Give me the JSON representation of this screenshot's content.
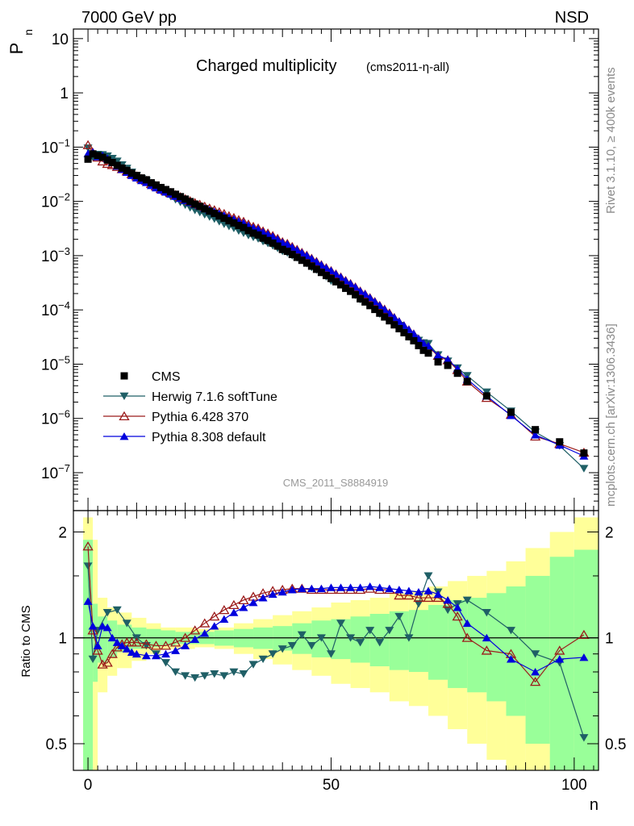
{
  "header": {
    "energy_label": "7000 GeV pp",
    "process_label": "NSD"
  },
  "title": {
    "main": "Charged multiplicity",
    "analysis_tag": "(cms2011-η-all)"
  },
  "side_labels": {
    "top": "Rivet 3.1.10, ≥ 400k events",
    "bottom": "mcplots.cern.ch [arXiv:1306.3436]"
  },
  "watermark": "CMS_2011_S8884919",
  "chart_data": [
    {
      "type": "scatter",
      "panel": "main",
      "ylabel": "Pn",
      "ylabel_main": "P",
      "ylabel_sub": "n",
      "yscale": "log",
      "ylim": [
        2e-08,
        15
      ],
      "xlim": [
        -3,
        105
      ],
      "ytick_labels": [
        {
          "base": "10",
          "exp": ""
        },
        {
          "base": "1",
          "exp": ""
        },
        {
          "base": "10",
          "exp": "−1"
        },
        {
          "base": "10",
          "exp": "−2"
        },
        {
          "base": "10",
          "exp": "−3"
        },
        {
          "base": "10",
          "exp": "−4"
        },
        {
          "base": "10",
          "exp": "−5"
        },
        {
          "base": "10",
          "exp": "−6"
        },
        {
          "base": "10",
          "exp": "−7"
        }
      ],
      "legend": [
        {
          "name": "CMS",
          "color": "#000000",
          "marker": "square"
        },
        {
          "name": "Herwig 7.1.6 softTune",
          "color": "#1f5f66",
          "marker": "triangle-down"
        },
        {
          "name": "Pythia 6.428 370",
          "color": "#9b1b1b",
          "marker": "triangle-up-open"
        },
        {
          "name": "Pythia 8.308 default",
          "color": "#0000dd",
          "marker": "triangle-up"
        }
      ],
      "cms": {
        "x": [
          0,
          1,
          2,
          3,
          4,
          5,
          6,
          7,
          8,
          9,
          10,
          11,
          12,
          13,
          14,
          15,
          16,
          17,
          18,
          19,
          20,
          21,
          22,
          23,
          24,
          25,
          26,
          27,
          28,
          29,
          30,
          31,
          32,
          33,
          34,
          35,
          36,
          37,
          38,
          39,
          40,
          41,
          42,
          43,
          44,
          45,
          46,
          47,
          48,
          49,
          50,
          51,
          52,
          53,
          54,
          55,
          56,
          57,
          58,
          59,
          60,
          61,
          62,
          63,
          64,
          65,
          66,
          67,
          68,
          69,
          70,
          72,
          74,
          76,
          78,
          82,
          87,
          92,
          97,
          102
        ],
        "y": [
          0.06,
          0.075,
          0.07,
          0.065,
          0.058,
          0.052,
          0.046,
          0.041,
          0.037,
          0.033,
          0.03,
          0.027,
          0.025,
          0.022,
          0.02,
          0.018,
          0.0165,
          0.015,
          0.0135,
          0.0122,
          0.011,
          0.0099,
          0.0089,
          0.0081,
          0.0073,
          0.0066,
          0.006,
          0.0054,
          0.0049,
          0.0044,
          0.004,
          0.0036,
          0.0033,
          0.0029,
          0.0026,
          0.0024,
          0.0021,
          0.0019,
          0.0017,
          0.0015,
          0.0013,
          0.0012,
          0.00105,
          0.00093,
          0.00082,
          0.00073,
          0.00064,
          0.00056,
          0.00049,
          0.00043,
          0.00038,
          0.00033,
          0.00029,
          0.00025,
          0.00022,
          0.00019,
          0.00016,
          0.00014,
          0.00012,
          0.000102,
          8.7e-05,
          7.4e-05,
          6.3e-05,
          5.3e-05,
          4.5e-05,
          3.8e-05,
          3.2e-05,
          2.7e-05,
          2.2e-05,
          1.8e-05,
          1.6e-05,
          1.1e-05,
          9.5e-06,
          6.8e-06,
          4.8e-06,
          2.6e-06,
          1.3e-06,
          6.2e-07,
          3.7e-07,
          2.3e-07
        ]
      }
    },
    {
      "type": "line",
      "panel": "ratio",
      "ylabel": "Ratio to CMS",
      "ylim": [
        0.42,
        2.3
      ],
      "xlim": [
        -3,
        105
      ],
      "yticks": [
        0.5,
        1,
        2
      ],
      "ytick_labels": [
        "0.5",
        "1",
        "2"
      ],
      "xticks": [
        0,
        50,
        100
      ],
      "xtick_labels": [
        "0",
        "50",
        "100"
      ],
      "xlabel": "n",
      "bands": {
        "edges": [
          -1,
          1,
          2,
          4,
          6,
          9,
          12,
          15,
          18,
          22,
          26,
          30,
          34,
          38,
          42,
          46,
          50,
          54,
          58,
          62,
          66,
          70,
          74,
          78,
          82,
          86,
          90,
          95,
          100,
          105
        ],
        "stat_err": [
          0.9,
          0.25,
          0.15,
          0.12,
          0.09,
          0.07,
          0.06,
          0.05,
          0.04,
          0.04,
          0.05,
          0.06,
          0.07,
          0.08,
          0.1,
          0.12,
          0.13,
          0.15,
          0.17,
          0.19,
          0.2,
          0.24,
          0.28,
          0.3,
          0.34,
          0.4,
          0.5,
          0.7,
          0.78
        ],
        "total_err": [
          1.2,
          0.9,
          0.3,
          0.22,
          0.18,
          0.14,
          0.1,
          0.07,
          0.07,
          0.06,
          0.07,
          0.1,
          0.13,
          0.16,
          0.19,
          0.22,
          0.26,
          0.28,
          0.3,
          0.34,
          0.36,
          0.4,
          0.45,
          0.5,
          0.55,
          0.65,
          0.8,
          1.0,
          1.2
        ]
      },
      "series": [
        {
          "name": "Herwig 7.1.6 softTune",
          "x": [
            0,
            1,
            2,
            4,
            6,
            8,
            10,
            12,
            14,
            16,
            18,
            20,
            22,
            24,
            26,
            28,
            30,
            32,
            34,
            36,
            38,
            40,
            42,
            44,
            46,
            48,
            50,
            52,
            54,
            56,
            58,
            60,
            62,
            64,
            66,
            68,
            70,
            72,
            74,
            76,
            78,
            82,
            87,
            92,
            97,
            102
          ],
          "y": [
            1.6,
            0.87,
            1.05,
            1.18,
            1.2,
            1.1,
            1.0,
            0.95,
            0.9,
            0.85,
            0.8,
            0.78,
            0.77,
            0.78,
            0.79,
            0.78,
            0.8,
            0.79,
            0.84,
            0.87,
            0.9,
            0.93,
            0.95,
            1.02,
            0.95,
            1.0,
            0.9,
            1.1,
            1.0,
            0.97,
            1.05,
            0.97,
            1.05,
            1.15,
            1.0,
            1.25,
            1.5,
            1.35,
            1.2,
            1.25,
            1.28,
            1.18,
            1.05,
            0.9,
            0.85,
            0.52
          ]
        },
        {
          "name": "Pythia 6.428 370",
          "x": [
            0,
            1,
            2,
            3,
            4,
            5,
            6,
            7,
            8,
            9,
            10,
            12,
            14,
            16,
            18,
            20,
            22,
            24,
            26,
            28,
            30,
            32,
            34,
            36,
            38,
            40,
            42,
            44,
            46,
            48,
            50,
            52,
            54,
            56,
            58,
            60,
            62,
            64,
            66,
            68,
            70,
            72,
            74,
            76,
            78,
            82,
            87,
            92,
            97,
            102
          ],
          "y": [
            1.82,
            1.05,
            0.92,
            0.84,
            0.85,
            0.9,
            0.94,
            0.96,
            0.97,
            0.97,
            0.97,
            0.96,
            0.95,
            0.95,
            0.97,
            1.0,
            1.05,
            1.1,
            1.15,
            1.2,
            1.24,
            1.28,
            1.31,
            1.34,
            1.36,
            1.37,
            1.38,
            1.38,
            1.37,
            1.37,
            1.37,
            1.37,
            1.37,
            1.37,
            1.38,
            1.37,
            1.37,
            1.32,
            1.32,
            1.3,
            1.3,
            1.3,
            1.25,
            1.15,
            1.0,
            0.92,
            0.9,
            0.75,
            0.92,
            1.02
          ]
        },
        {
          "name": "Pythia 8.308 default",
          "x": [
            0,
            1,
            2,
            3,
            4,
            5,
            6,
            7,
            8,
            9,
            10,
            12,
            14,
            16,
            18,
            20,
            22,
            24,
            26,
            28,
            30,
            32,
            34,
            36,
            38,
            40,
            42,
            44,
            46,
            48,
            50,
            52,
            54,
            56,
            58,
            60,
            62,
            64,
            66,
            68,
            70,
            72,
            74,
            76,
            78,
            82,
            87,
            92,
            97,
            102
          ],
          "y": [
            1.27,
            1.08,
            0.95,
            1.08,
            1.07,
            1.0,
            0.97,
            0.95,
            0.93,
            0.91,
            0.9,
            0.89,
            0.89,
            0.9,
            0.92,
            0.95,
            0.99,
            1.03,
            1.08,
            1.13,
            1.18,
            1.22,
            1.26,
            1.3,
            1.33,
            1.35,
            1.37,
            1.38,
            1.38,
            1.38,
            1.39,
            1.39,
            1.39,
            1.39,
            1.4,
            1.39,
            1.38,
            1.37,
            1.36,
            1.35,
            1.36,
            1.33,
            1.28,
            1.22,
            1.1,
            1.0,
            0.87,
            0.8,
            0.87,
            0.88
          ]
        }
      ]
    }
  ]
}
